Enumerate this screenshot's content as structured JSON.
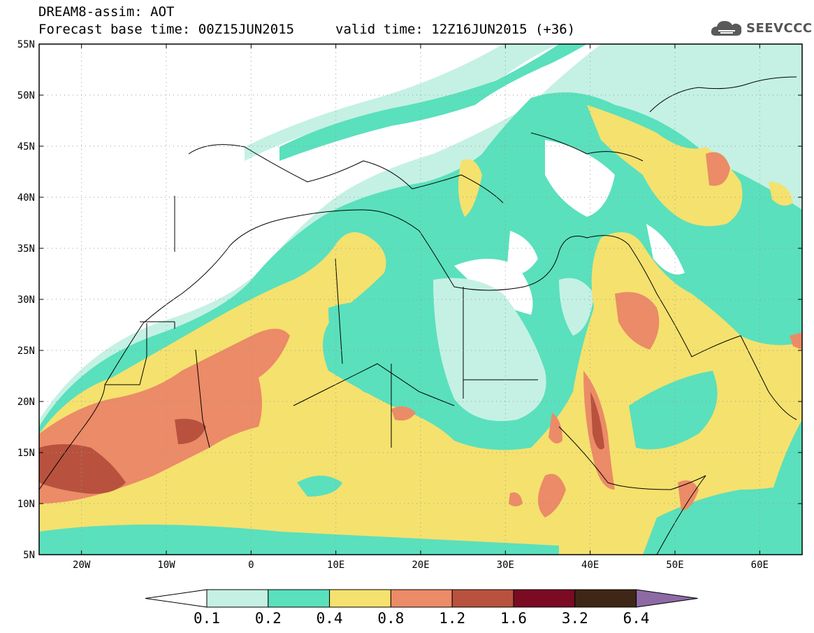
{
  "header": {
    "line1": "DREAM8-assim: AOT",
    "line2": "Forecast base time: 00Z15JUN2015",
    "line3": "valid time: 12Z16JUN2015 (+36)"
  },
  "logo": {
    "text": "SEEVCCC",
    "icon": "cloud-icon"
  },
  "map": {
    "lat_range": [
      5,
      55
    ],
    "lon_range": [
      -25,
      65
    ],
    "lat_ticks": [
      "5N",
      "10N",
      "15N",
      "20N",
      "25N",
      "30N",
      "35N",
      "40N",
      "45N",
      "50N",
      "55N"
    ],
    "lon_ticks": [
      "20W",
      "10W",
      "0",
      "10E",
      "20E",
      "30E",
      "40E",
      "50E",
      "60E"
    ],
    "grid": true
  },
  "colorbar": {
    "labels": [
      "0.1",
      "0.2",
      "0.4",
      "0.8",
      "1.2",
      "1.6",
      "3.2",
      "6.4"
    ],
    "colors": [
      "#ffffff",
      "#c4f1e4",
      "#5ae0bc",
      "#f5e16e",
      "#eb8b67",
      "#b8523e",
      "#7a0b22",
      "#3e2716",
      "#8e6aa4"
    ]
  }
}
